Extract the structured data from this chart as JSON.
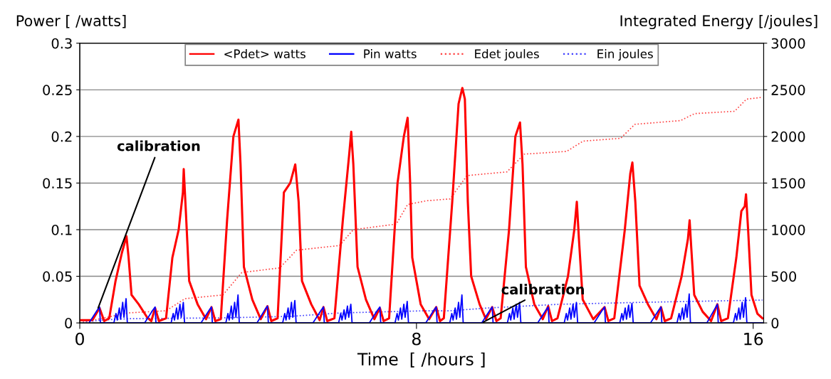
{
  "chart_data": {
    "type": "line",
    "xlabel": "Time  [ /hours ]",
    "ylabel": "Power [ /watts]",
    "y2label": "Integrated Energy [/joules]",
    "xlim": [
      0,
      16.25
    ],
    "xticks": [
      0,
      8,
      16
    ],
    "ylim": [
      0,
      0.3
    ],
    "yticks": [
      0,
      0.05,
      0.1,
      0.15,
      0.2,
      0.25,
      0.3
    ],
    "y2lim": [
      0,
      3000
    ],
    "y2ticks": [
      0,
      500,
      1000,
      1500,
      2000,
      2500,
      3000
    ],
    "grid": "y",
    "legend": "top",
    "marker": "none",
    "annotations": [
      {
        "text": "calibration",
        "x": 0.42,
        "y": 0.014
      },
      {
        "text": "calibration",
        "x": 9.55,
        "y": 0
      }
    ],
    "series": [
      {
        "name": "<Pdet> watts",
        "color": "#ff0000",
        "line_style": "solid",
        "x": [
          0,
          0.3,
          0.47,
          0.58,
          0.7,
          0.85,
          1.0,
          1.11,
          1.16,
          1.23,
          1.4,
          1.6,
          1.7,
          1.79,
          1.88,
          2.05,
          2.2,
          2.35,
          2.45,
          2.47,
          2.52,
          2.6,
          2.8,
          3.0,
          3.13,
          3.22,
          3.35,
          3.5,
          3.65,
          3.77,
          3.82,
          3.9,
          4.1,
          4.3,
          4.46,
          4.55,
          4.7,
          4.85,
          5.0,
          5.12,
          5.2,
          5.28,
          5.5,
          5.7,
          5.79,
          5.88,
          6.05,
          6.25,
          6.4,
          6.45,
          6.5,
          6.6,
          6.8,
          7.0,
          7.13,
          7.22,
          7.35,
          7.55,
          7.7,
          7.79,
          7.85,
          7.9,
          8.1,
          8.3,
          8.47,
          8.56,
          8.65,
          8.85,
          9.0,
          9.09,
          9.15,
          9.22,
          9.3,
          9.5,
          9.65,
          9.8,
          9.9,
          10.0,
          10.2,
          10.35,
          10.46,
          10.52,
          10.6,
          10.8,
          11.0,
          11.13,
          11.22,
          11.35,
          11.6,
          11.75,
          11.81,
          11.86,
          11.95,
          12.2,
          12.47,
          12.56,
          12.7,
          12.95,
          13.08,
          13.13,
          13.2,
          13.3,
          13.5,
          13.7,
          13.81,
          13.9,
          14.05,
          14.3,
          14.45,
          14.49,
          14.53,
          14.6,
          14.8,
          15.0,
          15.15,
          15.24,
          15.4,
          15.6,
          15.72,
          15.8,
          15.83,
          15.88,
          15.96,
          16.1,
          16.22
        ],
        "values": [
          0.003,
          0.003,
          0.016,
          0.002,
          0.005,
          0.045,
          0.075,
          0.093,
          0.07,
          0.03,
          0.02,
          0.006,
          0.002,
          0.016,
          0.002,
          0.005,
          0.07,
          0.1,
          0.14,
          0.165,
          0.12,
          0.045,
          0.02,
          0.004,
          0.017,
          0.002,
          0.004,
          0.11,
          0.2,
          0.218,
          0.17,
          0.06,
          0.025,
          0.004,
          0.018,
          0.002,
          0.005,
          0.14,
          0.15,
          0.17,
          0.13,
          0.045,
          0.02,
          0.003,
          0.017,
          0.002,
          0.005,
          0.11,
          0.18,
          0.205,
          0.17,
          0.06,
          0.025,
          0.004,
          0.016,
          0.002,
          0.005,
          0.15,
          0.2,
          0.22,
          0.15,
          0.07,
          0.02,
          0.004,
          0.017,
          0.002,
          0.005,
          0.13,
          0.235,
          0.252,
          0.24,
          0.13,
          0.05,
          0.02,
          0.004,
          0.017,
          0.002,
          0.005,
          0.1,
          0.2,
          0.215,
          0.17,
          0.06,
          0.02,
          0.004,
          0.018,
          0.002,
          0.005,
          0.05,
          0.1,
          0.13,
          0.09,
          0.025,
          0.004,
          0.017,
          0.002,
          0.005,
          0.1,
          0.16,
          0.172,
          0.13,
          0.04,
          0.02,
          0.004,
          0.017,
          0.002,
          0.005,
          0.05,
          0.09,
          0.11,
          0.08,
          0.03,
          0.012,
          0.002,
          0.02,
          0.002,
          0.005,
          0.07,
          0.12,
          0.125,
          0.138,
          0.1,
          0.03,
          0.01,
          0.005
        ]
      },
      {
        "name": "Pin watts",
        "color": "#0000ff",
        "line_style": "solid",
        "x": [
          0.22,
          0.42,
          0.47,
          0.49,
          0.81,
          0.86,
          0.89,
          0.94,
          0.97,
          1.02,
          1.05,
          1.1,
          1.13,
          1.54,
          1.74,
          1.79,
          1.81,
          2.17,
          2.22,
          2.25,
          2.3,
          2.33,
          2.38,
          2.41,
          2.46,
          2.49,
          2.88,
          3.08,
          3.13,
          3.15,
          3.47,
          3.52,
          3.55,
          3.6,
          3.63,
          3.68,
          3.71,
          3.76,
          3.79,
          4.21,
          4.41,
          4.46,
          4.48,
          4.82,
          4.87,
          4.9,
          4.95,
          4.98,
          5.03,
          5.06,
          5.11,
          5.14,
          5.54,
          5.74,
          5.79,
          5.81,
          6.15,
          6.2,
          6.23,
          6.28,
          6.31,
          6.36,
          6.39,
          6.44,
          6.47,
          6.88,
          7.08,
          7.13,
          7.15,
          7.49,
          7.54,
          7.57,
          7.62,
          7.65,
          7.7,
          7.73,
          7.78,
          7.81,
          8.22,
          8.42,
          8.47,
          8.49,
          8.79,
          8.84,
          8.87,
          8.92,
          8.95,
          9.0,
          9.03,
          9.08,
          9.11,
          9.55,
          9.75,
          9.8,
          9.82,
          10.16,
          10.21,
          10.24,
          10.29,
          10.32,
          10.37,
          10.4,
          10.45,
          10.48,
          10.88,
          11.08,
          11.13,
          11.15,
          11.51,
          11.56,
          11.59,
          11.64,
          11.67,
          11.72,
          11.75,
          11.8,
          11.83,
          12.22,
          12.42,
          12.47,
          12.49,
          12.83,
          12.88,
          12.91,
          12.96,
          12.99,
          13.04,
          13.07,
          13.12,
          13.15,
          13.56,
          13.76,
          13.81,
          13.83,
          14.19,
          14.24,
          14.27,
          14.32,
          14.35,
          14.4,
          14.43,
          14.48,
          14.51,
          14.9,
          15.1,
          15.15,
          15.17,
          15.53,
          15.58,
          15.61,
          15.66,
          15.69,
          15.74,
          15.77,
          15.82,
          15.85,
          16.22
        ],
        "values": [
          0,
          0.014,
          0.017,
          0,
          0,
          0.01,
          0.003,
          0.016,
          0.004,
          0.022,
          0.006,
          0.026,
          0,
          0,
          0.014,
          0.017,
          0,
          0,
          0.01,
          0.003,
          0.016,
          0.004,
          0.02,
          0.006,
          0.022,
          0,
          0,
          0.014,
          0.017,
          0,
          0,
          0.01,
          0.003,
          0.018,
          0.004,
          0.022,
          0.006,
          0.03,
          0,
          0,
          0.015,
          0.018,
          0,
          0,
          0.01,
          0.003,
          0.016,
          0.004,
          0.022,
          0.006,
          0.024,
          0,
          0,
          0.014,
          0.017,
          0,
          0,
          0.01,
          0.003,
          0.014,
          0.004,
          0.018,
          0.006,
          0.02,
          0,
          0,
          0.014,
          0.017,
          0,
          0,
          0.01,
          0.003,
          0.016,
          0.004,
          0.02,
          0.006,
          0.023,
          0,
          0,
          0.014,
          0.017,
          0,
          0,
          0.01,
          0.003,
          0.016,
          0.004,
          0.022,
          0.006,
          0.03,
          0,
          0,
          0.014,
          0.017,
          0,
          0,
          0.01,
          0.003,
          0.016,
          0.004,
          0.02,
          0.006,
          0.022,
          0,
          0,
          0.014,
          0.017,
          0,
          0,
          0.01,
          0.003,
          0.016,
          0.004,
          0.02,
          0.006,
          0.022,
          0,
          0,
          0.014,
          0.017,
          0,
          0,
          0.01,
          0.003,
          0.016,
          0.004,
          0.019,
          0.006,
          0.021,
          0,
          0,
          0.014,
          0.017,
          0,
          0,
          0.01,
          0.003,
          0.016,
          0.004,
          0.02,
          0.006,
          0.031,
          0,
          0,
          0.016,
          0.02,
          0,
          0,
          0.01,
          0.003,
          0.016,
          0.004,
          0.022,
          0.006,
          0.027,
          0,
          0
        ]
      },
      {
        "name": "Edet joules",
        "color": "#ff4040",
        "line_style": "dotted",
        "axis": "y2",
        "x": [
          0,
          1.15,
          2.05,
          2.5,
          3.4,
          3.85,
          4.75,
          5.15,
          6.17,
          6.5,
          7.52,
          7.79,
          8.24,
          8.8,
          9.2,
          10.15,
          10.56,
          11.57,
          11.96,
          12.85,
          13.19,
          14.27,
          14.61,
          15.56,
          15.84,
          16.22
        ],
        "values": [
          0,
          107,
          130,
          260,
          300,
          540,
          590,
          780,
          830,
          1000,
          1060,
          1270,
          1310,
          1330,
          1580,
          1620,
          1810,
          1840,
          1950,
          1980,
          2130,
          2170,
          2245,
          2270,
          2400,
          2420
        ]
      },
      {
        "name": "Ein joules",
        "color": "#4040ff",
        "line_style": "dotted",
        "axis": "y2",
        "x": [
          0,
          0.5,
          1.15,
          3.5,
          5.0,
          6.2,
          8.2,
          8.8,
          9.7,
          11.4,
          13.3,
          16.22
        ],
        "values": [
          0,
          30,
          45,
          55,
          70,
          107,
          130,
          130,
          160,
          200,
          220,
          245
        ]
      }
    ]
  }
}
